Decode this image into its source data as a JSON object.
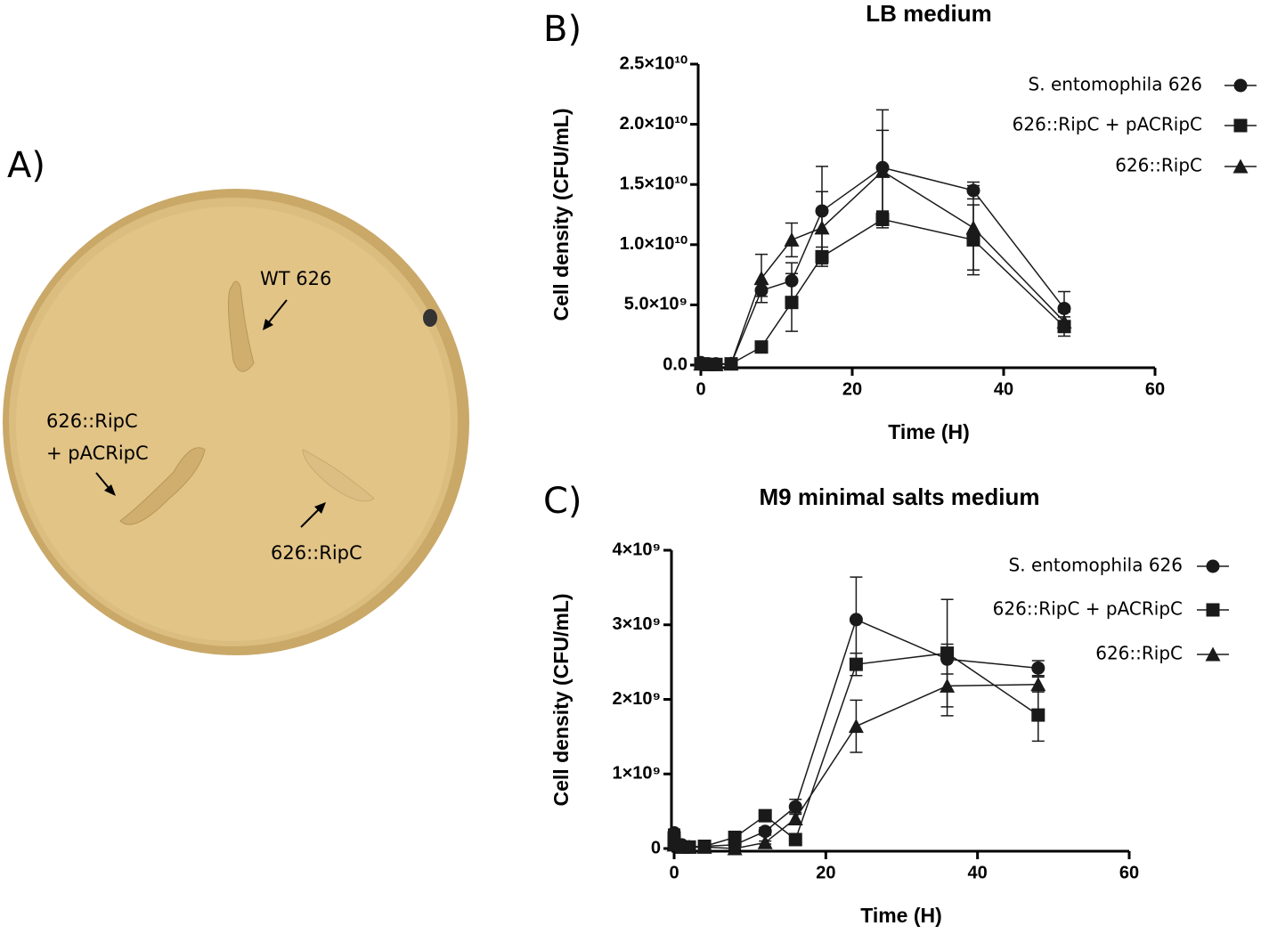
{
  "photo_panel": {
    "label": "A)",
    "annotations": [
      "WT 626",
      "626::RipC",
      "+ pACRipC",
      "626::RipC"
    ]
  },
  "chart_data": [
    {
      "type": "line",
      "panel_label": "B)",
      "title": "LB medium",
      "xlabel": "Time (H)",
      "ylabel": "Cell density (CFU/mL)",
      "x": [
        0,
        1,
        2,
        4,
        8,
        12,
        16,
        24,
        36,
        48
      ],
      "xlim": [
        0,
        60
      ],
      "xticks": [
        0,
        20,
        40,
        60
      ],
      "ylim": [
        0,
        25000000000.0
      ],
      "yticks": [
        {
          "value": 0,
          "label": "0.0"
        },
        {
          "value": 5000000000.0,
          "label": "5.0×10⁹"
        },
        {
          "value": 10000000000.0,
          "label": "1.0×10¹⁰"
        },
        {
          "value": 15000000000.0,
          "label": "1.5×10¹⁰"
        },
        {
          "value": 20000000000.0,
          "label": "2.0×10¹⁰"
        },
        {
          "value": 25000000000.0,
          "label": "2.5×10¹⁰"
        }
      ],
      "legend": "upper right",
      "series": [
        {
          "name": "S. entomophila 626",
          "marker": "circle",
          "color": "#1a1a1a",
          "values": [
            200000000.0,
            100000000.0,
            100000000.0,
            100000000.0,
            6200000000.0,
            7000000000.0,
            12800000000.0,
            16400000000.0,
            14500000000.0,
            4700000000.0
          ],
          "errors": [
            100000000.0,
            50000000.0,
            50000000.0,
            50000000.0,
            500000000.0,
            1500000000.0,
            3700000000.0,
            4800000000.0,
            700000000.0,
            1400000000.0
          ]
        },
        {
          "name": "626::RipC + pACRipC",
          "marker": "square",
          "color": "#1a1a1a",
          "values": [
            100000000.0,
            50000000.0,
            50000000.0,
            100000000.0,
            1500000000.0,
            5200000000.0,
            9000000000.0,
            12100000000.0,
            10400000000.0,
            3200000000.0
          ],
          "errors": [
            50000000.0,
            20000000.0,
            20000000.0,
            50000000.0,
            300000000.0,
            2400000000.0,
            800000000.0,
            700000000.0,
            2900000000.0,
            800000000.0
          ]
        },
        {
          "name": "626::RipC",
          "marker": "triangle",
          "color": "#1a1a1a",
          "values": [
            100000000.0,
            50000000.0,
            50000000.0,
            100000000.0,
            7200000000.0,
            10400000000.0,
            11400000000.0,
            16100000000.0,
            11400000000.0,
            3600000000.0
          ],
          "errors": [
            50000000.0,
            20000000.0,
            20000000.0,
            50000000.0,
            2000000000.0,
            1400000000.0,
            3000000000.0,
            3400000000.0,
            3500000000.0,
            800000000.0
          ]
        }
      ]
    },
    {
      "type": "line",
      "panel_label": "C)",
      "title": "M9 minimal salts medium",
      "xlabel": "Time (H)",
      "ylabel": "Cell density (CFU/mL)",
      "x": [
        0,
        1,
        2,
        4,
        8,
        12,
        16,
        24,
        36,
        48
      ],
      "xlim": [
        0,
        60
      ],
      "xticks": [
        0,
        20,
        40,
        60
      ],
      "ylim": [
        0,
        4000000000.0
      ],
      "yticks": [
        0,
        {
          "value": 1000000000.0,
          "label": "1×10⁹"
        },
        {
          "value": 2000000000.0,
          "label": "2×10⁹"
        },
        {
          "value": 3000000000.0,
          "label": "3×10⁹"
        },
        {
          "value": 4000000000.0,
          "label": "4×10⁹"
        }
      ],
      "legend": "upper right",
      "series": [
        {
          "name": "S. entomophila 626",
          "marker": "circle",
          "color": "#1a1a1a",
          "values": [
            210000000.0,
            50000000.0,
            20000000.0,
            30000000.0,
            50000000.0,
            230000000.0,
            560000000.0,
            3070000000.0,
            2540000000.0,
            2420000000.0
          ],
          "errors": [
            50000000.0,
            20000000.0,
            10000000.0,
            10000000.0,
            20000000.0,
            50000000.0,
            100000000.0,
            570000000.0,
            200000000.0,
            100000000.0
          ]
        },
        {
          "name": "626::RipC + pACRipC",
          "marker": "square",
          "color": "#1a1a1a",
          "values": [
            100000000.0,
            20000000.0,
            20000000.0,
            30000000.0,
            150000000.0,
            440000000.0,
            120000000.0,
            2470000000.0,
            2620000000.0,
            1790000000.0
          ],
          "errors": [
            30000000.0,
            10000000.0,
            10000000.0,
            10000000.0,
            30000000.0,
            50000000.0,
            30000000.0,
            150000000.0,
            720000000.0,
            350000000.0
          ]
        },
        {
          "name": "626::RipC",
          "marker": "triangle",
          "color": "#1a1a1a",
          "values": [
            50000000.0,
            20000000.0,
            20000000.0,
            20000000.0,
            0,
            80000000.0,
            400000000.0,
            1640000000.0,
            2180000000.0,
            2200000000.0
          ],
          "errors": [
            20000000.0,
            10000000.0,
            10000000.0,
            10000000.0,
            10000000.0,
            20000000.0,
            80000000.0,
            350000000.0,
            400000000.0,
            100000000.0
          ]
        }
      ]
    }
  ]
}
